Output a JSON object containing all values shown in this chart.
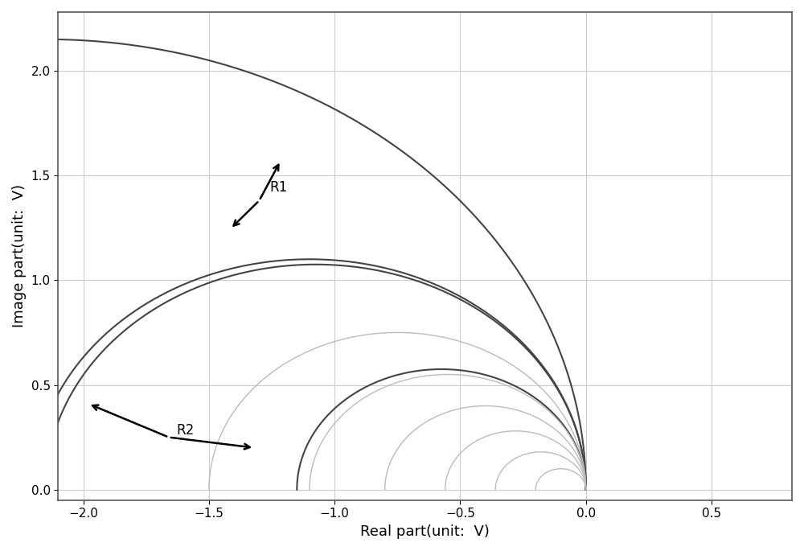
{
  "xlabel": "Real part(unit:  V)",
  "ylabel": "Image part(unit:  V)",
  "xlim": [
    -2.1,
    0.82
  ],
  "ylim": [
    -0.05,
    2.28
  ],
  "xticks": [
    -2.0,
    -1.5,
    -1.0,
    -0.5,
    0.0,
    0.5
  ],
  "yticks": [
    0.0,
    0.5,
    1.0,
    1.5,
    2.0
  ],
  "background_color": "#ffffff",
  "grid_color": "#cccccc",
  "semicircles": [
    {
      "r": 1.075,
      "color": "#444444",
      "lw": 1.5,
      "alpha": 1.0
    },
    {
      "r": 1.1,
      "color": "#444444",
      "lw": 1.5,
      "alpha": 1.0
    },
    {
      "r": 2.15,
      "color": "#444444",
      "lw": 1.5,
      "alpha": 1.0
    },
    {
      "r": 0.575,
      "color": "#444444",
      "lw": 1.5,
      "alpha": 1.0
    },
    {
      "r": 0.75,
      "color": "#bbbbbb",
      "lw": 1.0,
      "alpha": 1.0
    },
    {
      "r": 0.55,
      "color": "#bbbbbb",
      "lw": 1.0,
      "alpha": 1.0
    },
    {
      "r": 0.4,
      "color": "#bbbbbb",
      "lw": 1.0,
      "alpha": 1.0
    },
    {
      "r": 0.28,
      "color": "#bbbbbb",
      "lw": 1.0,
      "alpha": 1.0
    },
    {
      "r": 0.18,
      "color": "#bbbbbb",
      "lw": 1.0,
      "alpha": 1.0
    },
    {
      "r": 0.1,
      "color": "#bbbbbb",
      "lw": 1.0,
      "alpha": 1.0
    }
  ],
  "annotation_fontsize": 12,
  "arrow_lw": 1.8
}
